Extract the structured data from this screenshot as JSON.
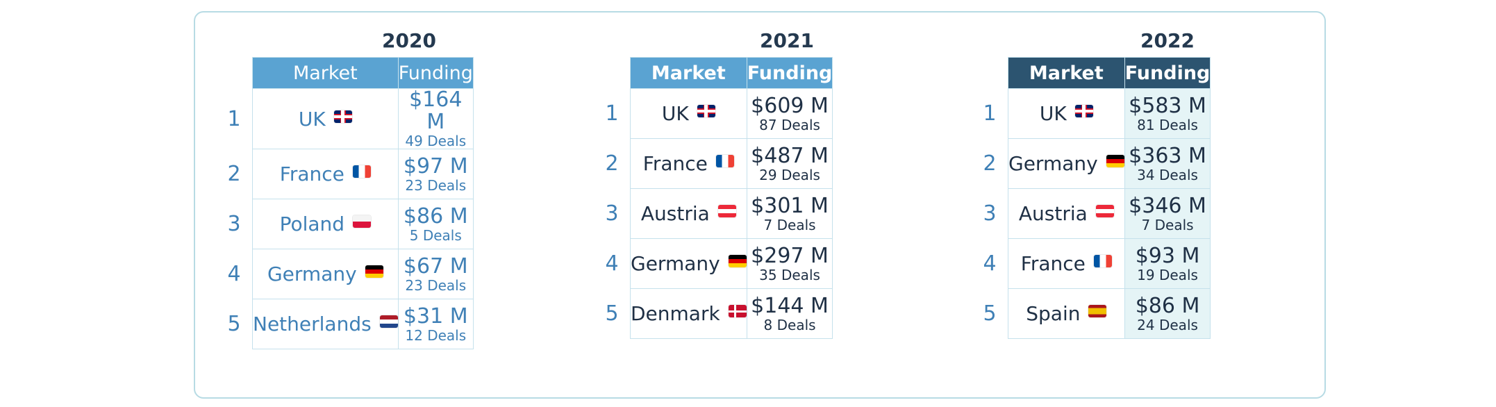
{
  "chart_data": {
    "type": "table",
    "columns": [
      "Market",
      "Funding"
    ],
    "panels": [
      {
        "year": "2020",
        "rows": [
          {
            "rank": "1",
            "market": "UK",
            "flag": "uk",
            "funding": "$164 M",
            "deals": "49 Deals"
          },
          {
            "rank": "2",
            "market": "France",
            "flag": "france",
            "funding": "$97 M",
            "deals": "23 Deals"
          },
          {
            "rank": "3",
            "market": "Poland",
            "flag": "poland",
            "funding": "$86 M",
            "deals": "5 Deals"
          },
          {
            "rank": "4",
            "market": "Germany",
            "flag": "germany",
            "funding": "$67 M",
            "deals": "23 Deals"
          },
          {
            "rank": "5",
            "market": "Netherlands",
            "flag": "netherlands",
            "funding": "$31 M",
            "deals": "12 Deals"
          }
        ]
      },
      {
        "year": "2021",
        "rows": [
          {
            "rank": "1",
            "market": "UK",
            "flag": "uk",
            "funding": "$609 M",
            "deals": "87 Deals"
          },
          {
            "rank": "2",
            "market": "France",
            "flag": "france",
            "funding": "$487 M",
            "deals": "29 Deals"
          },
          {
            "rank": "3",
            "market": "Austria",
            "flag": "austria",
            "funding": "$301 M",
            "deals": "7 Deals"
          },
          {
            "rank": "4",
            "market": "Germany",
            "flag": "germany",
            "funding": "$297 M",
            "deals": "35 Deals"
          },
          {
            "rank": "5",
            "market": "Denmark",
            "flag": "denmark",
            "funding": "$144 M",
            "deals": "8 Deals"
          }
        ]
      },
      {
        "year": "2022",
        "rows": [
          {
            "rank": "1",
            "market": "UK",
            "flag": "uk",
            "funding": "$583 M",
            "deals": "81 Deals"
          },
          {
            "rank": "2",
            "market": "Germany",
            "flag": "germany",
            "funding": "$363 M",
            "deals": "34 Deals"
          },
          {
            "rank": "3",
            "market": "Austria",
            "flag": "austria",
            "funding": "$346 M",
            "deals": "7 Deals"
          },
          {
            "rank": "4",
            "market": "France",
            "flag": "france",
            "funding": "$93 M",
            "deals": "19 Deals"
          },
          {
            "rank": "5",
            "market": "Spain",
            "flag": "spain",
            "funding": "$86 M",
            "deals": "24 Deals"
          }
        ]
      }
    ]
  },
  "colors": {
    "header_2020": "#5aa3d2",
    "header_2021": "#5aa3d2",
    "header_2022": "#2c5470",
    "text_2020": "#3f80b6",
    "text_dark": "#1f3045",
    "highlight_2022": "#e5f4f6",
    "border": "#c5e1ec"
  }
}
